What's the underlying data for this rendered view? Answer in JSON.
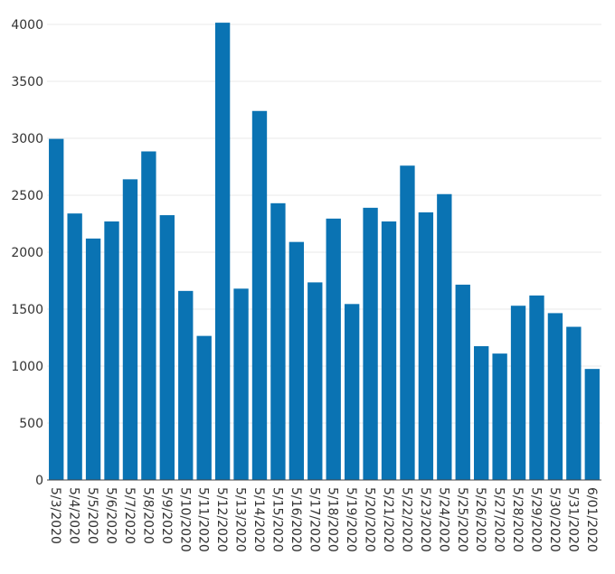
{
  "chart_data": {
    "type": "bar",
    "categories": [
      "5/3/2020",
      "5/4/2020",
      "5/5/2020",
      "5/6/2020",
      "5/7/2020",
      "5/8/2020",
      "5/9/2020",
      "5/10/2020",
      "5/11/2020",
      "5/12/2020",
      "5/13/2020",
      "5/14/2020",
      "5/15/2020",
      "5/16/2020",
      "5/17/2020",
      "5/18/2020",
      "5/19/2020",
      "5/20/2020",
      "5/21/2020",
      "5/22/2020",
      "5/23/2020",
      "5/24/2020",
      "5/25/2020",
      "5/26/2020",
      "5/27/2020",
      "5/28/2020",
      "5/29/2020",
      "5/30/2020",
      "5/31/2020",
      "6/01/2020"
    ],
    "values": [
      2995,
      2340,
      2120,
      2270,
      2640,
      2885,
      2325,
      1660,
      1265,
      4015,
      1680,
      3240,
      2430,
      2090,
      1735,
      2295,
      1545,
      2390,
      2270,
      2760,
      2350,
      2510,
      1715,
      1175,
      1110,
      1530,
      1620,
      1465,
      1345,
      975
    ],
    "title": "",
    "xlabel": "",
    "ylabel": "",
    "ylim": [
      0,
      4000
    ],
    "yticks": [
      0,
      500,
      1000,
      1500,
      2000,
      2500,
      3000,
      3500,
      4000
    ],
    "grid": true,
    "bar_color": "#0a73b3"
  }
}
